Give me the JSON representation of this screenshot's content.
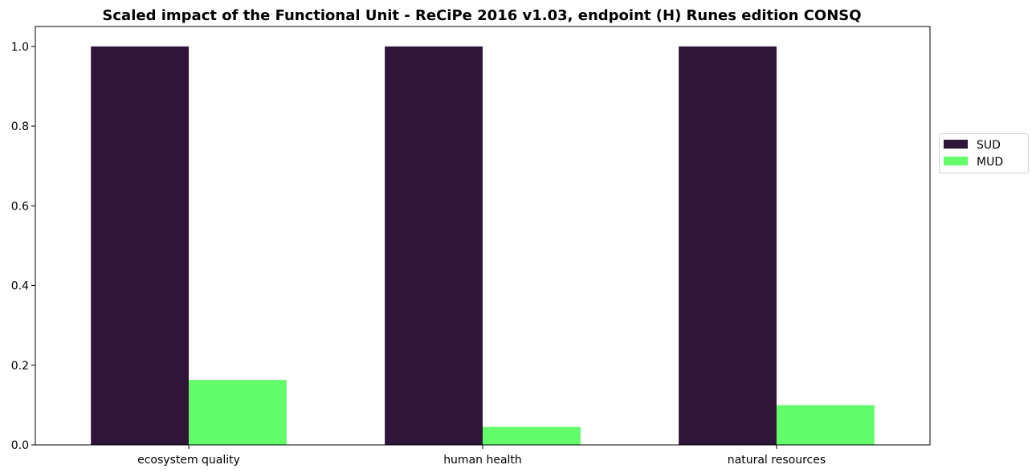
{
  "chart_data": {
    "type": "bar",
    "title": "Scaled impact of the Functional Unit - ReCiPe 2016 v1.03, endpoint (H) Runes edition CONSQ",
    "xlabel": "",
    "ylabel": "",
    "categories": [
      "ecosystem quality",
      "human health",
      "natural resources"
    ],
    "series": [
      {
        "name": "SUD",
        "color": "#311439",
        "values": [
          1.0,
          1.0,
          1.0
        ]
      },
      {
        "name": "MUD",
        "color": "#63FC6B",
        "values": [
          0.163,
          0.045,
          0.1
        ]
      }
    ],
    "ylim": [
      0,
      1.05
    ],
    "yticks": [
      0.0,
      0.2,
      0.4,
      0.6,
      0.8,
      1.0
    ],
    "ytick_labels": [
      "0.0",
      "0.2",
      "0.4",
      "0.6",
      "0.8",
      "1.0"
    ],
    "grid": false,
    "legend_position": "right, outside plot"
  }
}
